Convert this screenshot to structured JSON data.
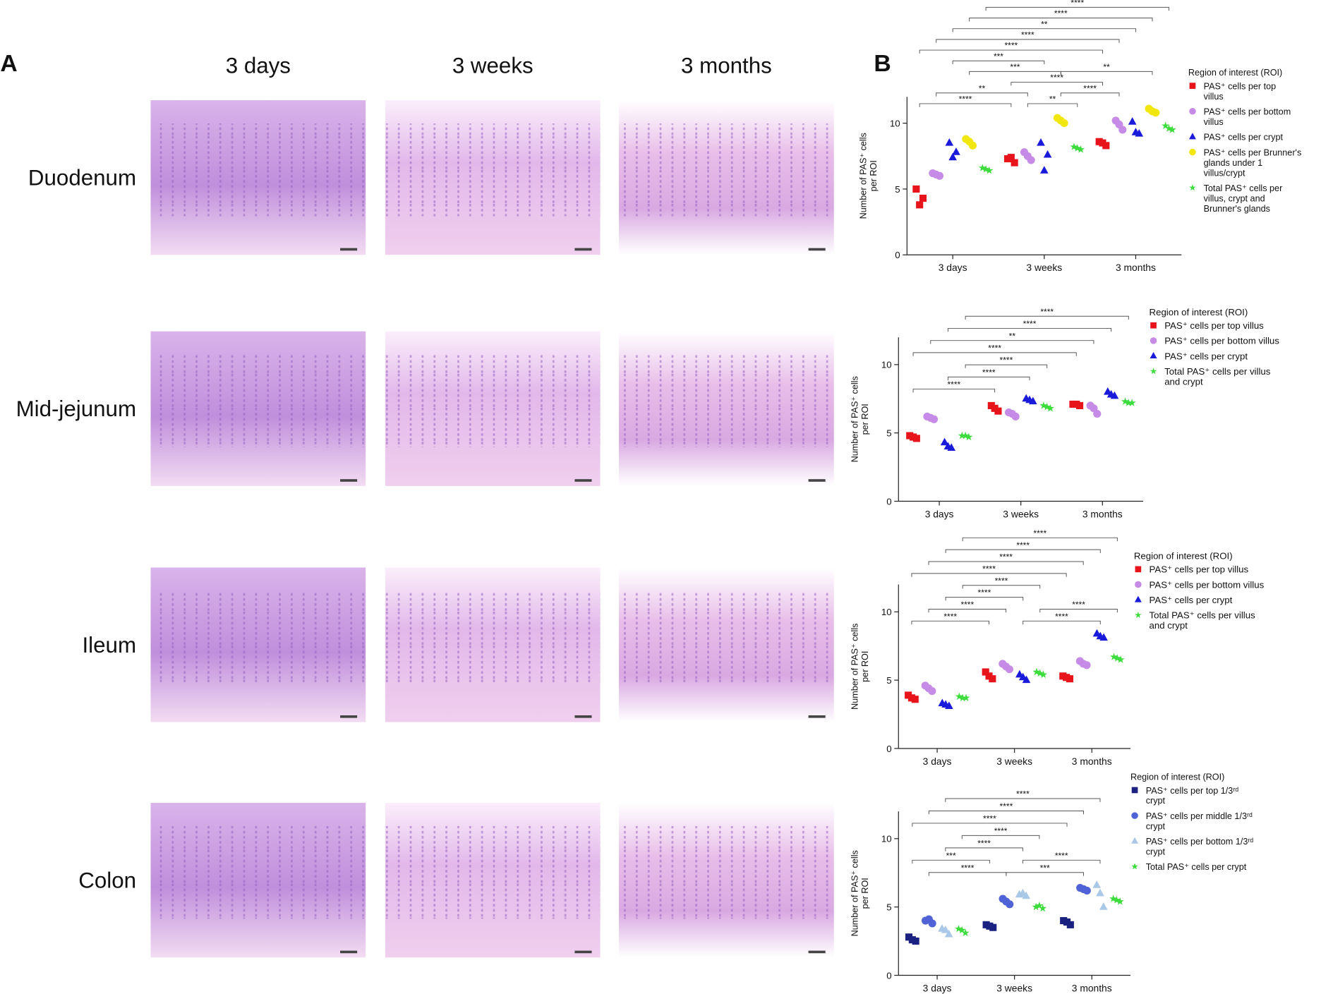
{
  "panel_a": {
    "label": "A",
    "columns": [
      "3 days",
      "3 weeks",
      "3 months"
    ],
    "rows": [
      "Duodenum",
      "Mid-jejunum",
      "Ileum",
      "Colon"
    ]
  },
  "panel_b_label": "B",
  "chart_data": [
    {
      "type": "dot",
      "ylabel": [
        "Number of PAS⁺ cells",
        "per ROI"
      ],
      "categories": [
        "3 days",
        "3 weeks",
        "3 months"
      ],
      "ylim": [
        0,
        12
      ],
      "yticks": [
        0,
        5,
        10
      ],
      "legend_title": "Region of interest (ROI)",
      "series": [
        {
          "name": "PAS⁺ cells per top villus",
          "color": "#e8141c",
          "marker": "square",
          "values": [
            [
              5.0,
              4.3,
              3.8
            ],
            [
              7.3,
              7.0,
              7.4
            ],
            [
              8.6,
              8.3,
              8.5
            ]
          ]
        },
        {
          "name": "PAS⁺ cells per bottom villus",
          "color": "#c58be6",
          "marker": "circle",
          "values": [
            [
              6.2,
              6.0,
              6.1
            ],
            [
              7.8,
              7.2,
              7.5
            ],
            [
              10.2,
              9.5,
              9.9
            ]
          ]
        },
        {
          "name": "PAS⁺ cells per crypt",
          "color": "#1a1adb",
          "marker": "triangle",
          "values": [
            [
              8.5,
              7.8,
              7.4
            ],
            [
              8.5,
              7.6,
              6.4
            ],
            [
              10.1,
              9.2,
              9.3
            ]
          ]
        },
        {
          "name": "PAS⁺ cells per Brunner's glands under 1 villus/crypt",
          "color": "#f2e60f",
          "marker": "circle",
          "values": [
            [
              8.8,
              8.3,
              8.6
            ],
            [
              10.4,
              10.0,
              10.2
            ],
            [
              11.1,
              10.8,
              10.9
            ]
          ]
        },
        {
          "name": "Total PAS⁺ cells per villus, crypt and Brunner's glands",
          "color": "#3ddc3d",
          "marker": "star",
          "values": [
            [
              6.6,
              6.4,
              6.5
            ],
            [
              8.2,
              8.0,
              8.1
            ],
            [
              9.8,
              9.5,
              9.6
            ]
          ]
        }
      ],
      "brackets": [
        {
          "from": [
            0,
            0
          ],
          "to": [
            1,
            0
          ],
          "label": "****"
        },
        {
          "from": [
            1,
            1
          ],
          "to": [
            1,
            4
          ],
          "label": "**"
        },
        {
          "from": [
            0,
            1
          ],
          "to": [
            1,
            1
          ],
          "label": "**"
        },
        {
          "from": [
            1,
            3
          ],
          "to": [
            2,
            1
          ],
          "label": "****"
        },
        {
          "from": [
            1,
            0
          ],
          "to": [
            2,
            0
          ],
          "label": "****"
        },
        {
          "from": [
            0,
            3
          ],
          "to": [
            1,
            3
          ],
          "label": "***"
        },
        {
          "from": [
            1,
            3
          ],
          "to": [
            2,
            3
          ],
          "label": "**"
        },
        {
          "from": [
            0,
            2
          ],
          "to": [
            1,
            2
          ],
          "label": "***"
        },
        {
          "from": [
            0,
            0
          ],
          "to": [
            2,
            0
          ],
          "label": "****"
        },
        {
          "from": [
            0,
            1
          ],
          "to": [
            2,
            1
          ],
          "label": "****"
        },
        {
          "from": [
            0,
            2
          ],
          "to": [
            2,
            2
          ],
          "label": "**"
        },
        {
          "from": [
            0,
            3
          ],
          "to": [
            2,
            3
          ],
          "label": "****"
        },
        {
          "from": [
            0,
            4
          ],
          "to": [
            2,
            4
          ],
          "label": "****"
        }
      ]
    },
    {
      "type": "dot",
      "ylabel": [
        "Number of PAS⁺ cells",
        "per ROI"
      ],
      "categories": [
        "3 days",
        "3 weeks",
        "3 months"
      ],
      "ylim": [
        0,
        12
      ],
      "yticks": [
        0,
        5,
        10
      ],
      "legend_title": "Region of interest (ROI)",
      "series": [
        {
          "name": "PAS⁺ cells per top villus",
          "color": "#e8141c",
          "marker": "square",
          "values": [
            [
              4.8,
              4.6,
              4.7
            ],
            [
              7.0,
              6.6,
              6.8
            ],
            [
              7.1,
              7.0,
              7.1
            ]
          ]
        },
        {
          "name": "PAS⁺ cells per bottom villus",
          "color": "#c58be6",
          "marker": "circle",
          "values": [
            [
              6.2,
              6.0,
              6.1
            ],
            [
              6.5,
              6.2,
              6.4
            ],
            [
              7.0,
              6.4,
              6.8
            ]
          ]
        },
        {
          "name": "PAS⁺ cells per crypt",
          "color": "#1a1adb",
          "marker": "triangle",
          "values": [
            [
              4.3,
              3.9,
              4.0
            ],
            [
              7.5,
              7.3,
              7.4
            ],
            [
              8.0,
              7.7,
              7.8
            ]
          ]
        },
        {
          "name": "Total PAS⁺ cells per villus and crypt",
          "color": "#3ddc3d",
          "marker": "star",
          "values": [
            [
              4.8,
              4.7,
              4.8
            ],
            [
              7.0,
              6.8,
              6.9
            ],
            [
              7.3,
              7.2,
              7.2
            ]
          ]
        }
      ],
      "brackets": [
        {
          "from": [
            0,
            0
          ],
          "to": [
            1,
            0
          ],
          "label": "****"
        },
        {
          "from": [
            0,
            2
          ],
          "to": [
            1,
            2
          ],
          "label": "****"
        },
        {
          "from": [
            0,
            3
          ],
          "to": [
            1,
            3
          ],
          "label": "****"
        },
        {
          "from": [
            0,
            0
          ],
          "to": [
            2,
            0
          ],
          "label": "****"
        },
        {
          "from": [
            0,
            1
          ],
          "to": [
            2,
            1
          ],
          "label": "**"
        },
        {
          "from": [
            0,
            2
          ],
          "to": [
            2,
            2
          ],
          "label": "****"
        },
        {
          "from": [
            0,
            3
          ],
          "to": [
            2,
            3
          ],
          "label": "****"
        }
      ]
    },
    {
      "type": "dot",
      "ylabel": [
        "Number of PAS⁺ cells",
        "per ROI"
      ],
      "categories": [
        "3 days",
        "3 weeks",
        "3 months"
      ],
      "ylim": [
        0,
        12
      ],
      "yticks": [
        0,
        5,
        10
      ],
      "legend_title": "Region of interest (ROI)",
      "series": [
        {
          "name": "PAS⁺ cells per top villus",
          "color": "#e8141c",
          "marker": "square",
          "values": [
            [
              3.9,
              3.6,
              3.7
            ],
            [
              5.6,
              5.1,
              5.3
            ],
            [
              5.3,
              5.1,
              5.2
            ]
          ]
        },
        {
          "name": "PAS⁺ cells per bottom villus",
          "color": "#c58be6",
          "marker": "circle",
          "values": [
            [
              4.6,
              4.2,
              4.4
            ],
            [
              6.2,
              5.8,
              6.0
            ],
            [
              6.4,
              6.1,
              6.2
            ]
          ]
        },
        {
          "name": "PAS⁺ cells per crypt",
          "color": "#1a1adb",
          "marker": "triangle",
          "values": [
            [
              3.3,
              3.1,
              3.2
            ],
            [
              5.4,
              5.0,
              5.2
            ],
            [
              8.4,
              8.1,
              8.2
            ]
          ]
        },
        {
          "name": "Total PAS⁺ cells per villus and crypt",
          "color": "#3ddc3d",
          "marker": "star",
          "values": [
            [
              3.8,
              3.7,
              3.7
            ],
            [
              5.6,
              5.4,
              5.5
            ],
            [
              6.7,
              6.5,
              6.6
            ]
          ]
        }
      ],
      "brackets": [
        {
          "from": [
            0,
            0
          ],
          "to": [
            1,
            0
          ],
          "label": "****"
        },
        {
          "from": [
            1,
            2
          ],
          "to": [
            2,
            2
          ],
          "label": "****"
        },
        {
          "from": [
            0,
            1
          ],
          "to": [
            1,
            1
          ],
          "label": "****"
        },
        {
          "from": [
            1,
            3
          ],
          "to": [
            2,
            3
          ],
          "label": "****"
        },
        {
          "from": [
            0,
            2
          ],
          "to": [
            1,
            2
          ],
          "label": "****"
        },
        {
          "from": [
            0,
            3
          ],
          "to": [
            1,
            3
          ],
          "label": "****"
        },
        {
          "from": [
            0,
            0
          ],
          "to": [
            2,
            0
          ],
          "label": "****"
        },
        {
          "from": [
            0,
            1
          ],
          "to": [
            2,
            1
          ],
          "label": "****"
        },
        {
          "from": [
            0,
            2
          ],
          "to": [
            2,
            2
          ],
          "label": "****"
        },
        {
          "from": [
            0,
            3
          ],
          "to": [
            2,
            3
          ],
          "label": "****"
        }
      ]
    },
    {
      "type": "dot",
      "ylabel": [
        "Number of PAS⁺ cells",
        "per ROI"
      ],
      "categories": [
        "3 days",
        "3 weeks",
        "3 months"
      ],
      "ylim": [
        0,
        12
      ],
      "yticks": [
        0,
        5,
        10
      ],
      "legend_title": "Region of interest (ROI)",
      "series": [
        {
          "name": "PAS⁺ cells per top 1/3ʳᵈ crypt",
          "color": "#1a2180",
          "marker": "square",
          "values": [
            [
              2.8,
              2.5,
              2.6
            ],
            [
              3.7,
              3.5,
              3.6
            ],
            [
              4.0,
              3.7,
              3.9
            ]
          ]
        },
        {
          "name": "PAS⁺ cells per middle 1/3ʳᵈ crypt",
          "color": "#4f63d6",
          "marker": "circle",
          "values": [
            [
              4.0,
              3.8,
              4.1
            ],
            [
              5.6,
              5.2,
              5.4
            ],
            [
              6.4,
              6.2,
              6.3
            ]
          ]
        },
        {
          "name": "PAS⁺ cells per bottom 1/3ʳᵈ crypt",
          "color": "#a9c7e6",
          "marker": "triangle",
          "values": [
            [
              3.4,
              3.0,
              3.3
            ],
            [
              5.9,
              5.8,
              6.0
            ],
            [
              6.6,
              5.0,
              6.0
            ]
          ]
        },
        {
          "name": "Total PAS⁺ cells per crypt",
          "color": "#3ddc3d",
          "marker": "star",
          "values": [
            [
              3.4,
              3.1,
              3.3
            ],
            [
              5.0,
              4.9,
              5.1
            ],
            [
              5.6,
              5.4,
              5.5
            ]
          ]
        }
      ],
      "brackets": [
        {
          "from": [
            0,
            1
          ],
          "to": [
            1,
            1
          ],
          "label": "****"
        },
        {
          "from": [
            1,
            1
          ],
          "to": [
            2,
            1
          ],
          "label": "***"
        },
        {
          "from": [
            0,
            0
          ],
          "to": [
            1,
            0
          ],
          "label": "***"
        },
        {
          "from": [
            0,
            2
          ],
          "to": [
            1,
            2
          ],
          "label": "****"
        },
        {
          "from": [
            0,
            3
          ],
          "to": [
            1,
            3
          ],
          "label": "****"
        },
        {
          "from": [
            0,
            0
          ],
          "to": [
            2,
            0
          ],
          "label": "****"
        },
        {
          "from": [
            1,
            2
          ],
          "to": [
            2,
            2
          ],
          "label": "****"
        },
        {
          "from": [
            0,
            1
          ],
          "to": [
            2,
            1
          ],
          "label": "****"
        },
        {
          "from": [
            0,
            2
          ],
          "to": [
            2,
            2
          ],
          "label": "****"
        }
      ]
    }
  ]
}
